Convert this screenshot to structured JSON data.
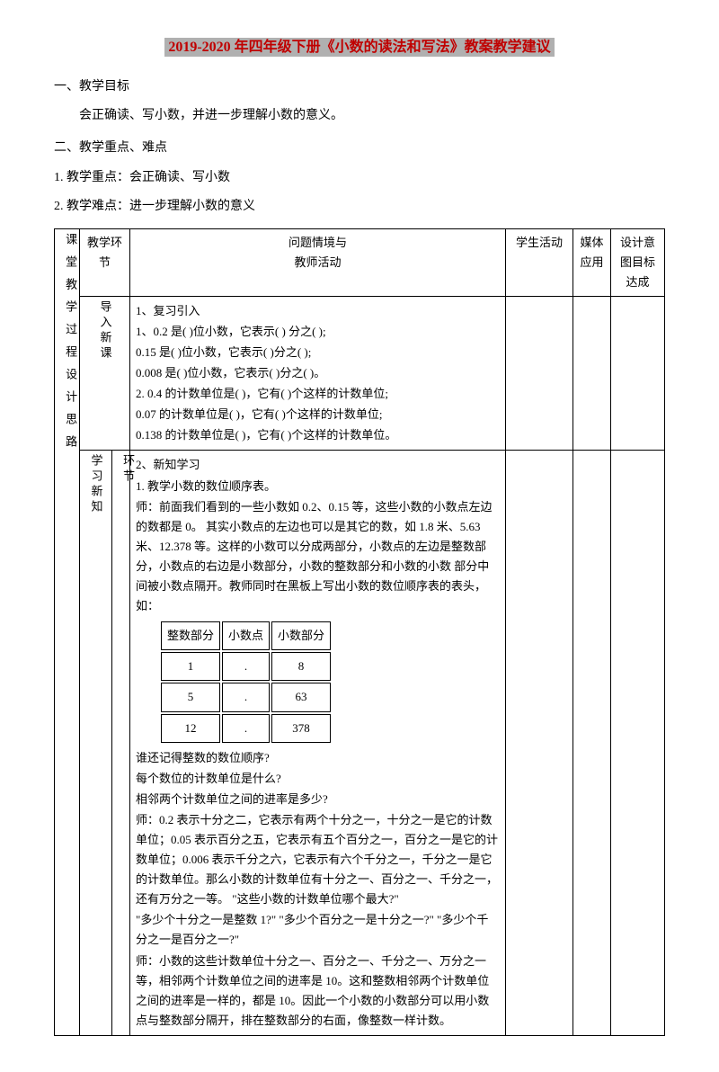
{
  "title": "2019-2020 年四年级下册《小数的读法和写法》教案教学建议",
  "sec1": {
    "h": "一、教学目标",
    "p": "会正确读、写小数，并进一步理解小数的意义。"
  },
  "sec2": {
    "h": "二、教学重点、难点",
    "i1": "1. 教学重点：会正确读、写小数",
    "i2": "2. 教学难点：进一步理解小数的意义"
  },
  "table": {
    "headers": {
      "stage": "教学环节",
      "context": "问题情境与",
      "teacher": "教师活动",
      "student": "学生活动",
      "media": "媒体应用",
      "goal": "设计意图目标达成"
    },
    "leftTitle": "课堂教学过程设计思路",
    "row1": {
      "stage": "导入新课",
      "lines": [
        "1、复习引入",
        "1、0.2 是( )位小数，它表示(  ) 分之( );",
        "0.15 是( )位小数，它表示( )分之( );",
        "0.008 是( )位小数，它表示( )分之( )。",
        "2.  0.4 的计数单位是( )，它有( )个这样的计数单位;",
        "0.07 的计数单位是( )，它有( )个这样的计数单位;",
        "0.138 的计数单位是( )，它有( )个这样的计数单位。"
      ]
    },
    "row2": {
      "stage": "学习新知",
      "sub": "环节",
      "preLines": [
        "2、新知学习",
        "1. 教学小数的数位顺序表。",
        "师：前面我们看到的一些小数如 0.2、0.15 等，这些小数的小数点左边的数都是 0。 其实小数点的左边也可以是其它的数，如 1.8 米、5.63 米、12.378 等。这样的小数可以分成两部分，小数点的左边是整数部分，小数点的右边是小数部分，小数的整数部分和小数的小数 部分中间被小数点隔开。教师同时在黑板上写出小数的数位顺序表的表头，如："
      ],
      "mini": {
        "h": [
          "整数部分",
          "小数点",
          "小数部分"
        ],
        "r1": [
          "1",
          ".",
          "8"
        ],
        "r2": [
          "5",
          ".",
          "63"
        ],
        "r3": [
          "12",
          ".",
          "378"
        ]
      },
      "postLines": [
        "谁还记得整数的数位顺序?",
        "每个数位的计数单位是什么?",
        "相邻两个计数单位之间的进率是多少?",
        "师：0.2 表示十分之二，它表示有两个十分之一，十分之一是它的计数单位；0.05 表示百分之五，它表示有五个百分之一，百分之一是它的计数单位；0.006 表示千分之六，它表示有六个千分之一，千分之一是它的计数单位。那么小数的计数单位有十分之一、百分之一、千分之一，还有万分之一等。  \"这些小数的计数单位哪个最大?\"",
        "  \"多少个十分之一是整数 1?\"   \"多少个百分之一是十分之一?\"   \"多少个千分之一是百分之一?\"",
        "师：小数的这些计数单位十分之一、百分之一、千分之一、万分之一等，相邻两个计数单位之间的进率是 10。这和整数相邻两个计数单位之间的进率是一样的，都是 10。因此一个小数的小数部分可以用小数点与整数部分隔开，排在整数部分的右面，像整数一样计数。"
      ]
    }
  }
}
